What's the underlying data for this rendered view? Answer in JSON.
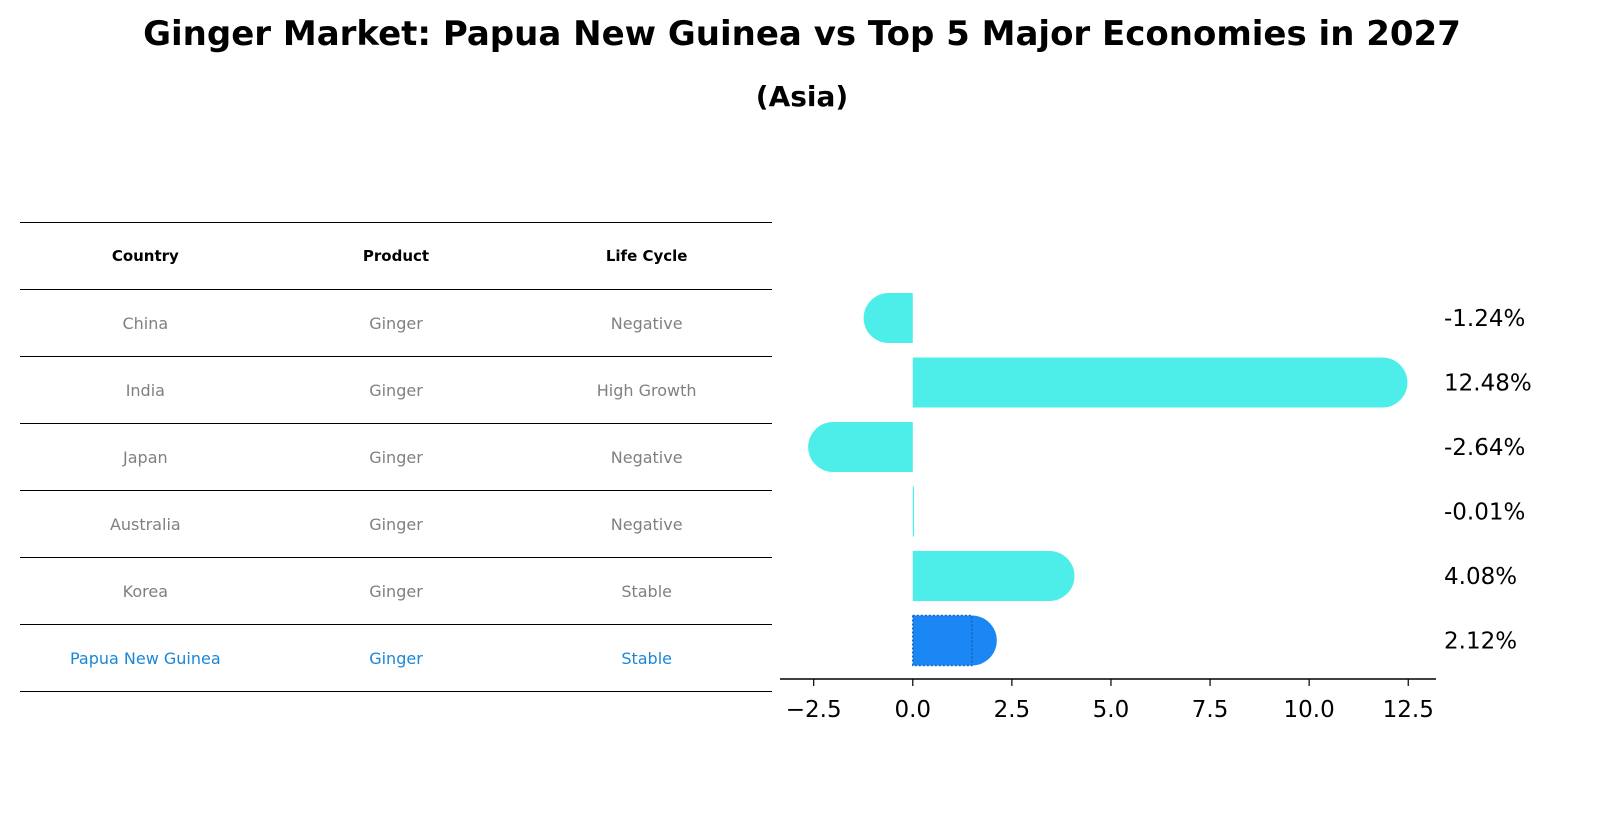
{
  "title": "Ginger Market: Papua New Guinea vs Top 5 Major Economies in 2027",
  "subtitle": "(Asia)",
  "table": {
    "headers": [
      "Country",
      "Product",
      "Life Cycle"
    ],
    "rows": [
      [
        "China",
        "Ginger",
        "Negative"
      ],
      [
        "India",
        "Ginger",
        "High Growth"
      ],
      [
        "Japan",
        "Ginger",
        "Negative"
      ],
      [
        "Australia",
        "Ginger",
        "Negative"
      ],
      [
        "Korea",
        "Ginger",
        "Stable"
      ],
      [
        "Papua New Guinea",
        "Ginger",
        "Stable"
      ]
    ]
  },
  "colors": {
    "bar": "#4deeea",
    "highlight": "#1a87f5",
    "highlight_text": "#1a87d6",
    "muted_text": "#808080"
  },
  "chart_data": {
    "type": "bar",
    "orientation": "horizontal",
    "categories": [
      "China",
      "India",
      "Japan",
      "Australia",
      "Korea",
      "Papua New Guinea"
    ],
    "values": [
      -1.24,
      12.48,
      -2.64,
      -0.01,
      4.08,
      2.12
    ],
    "value_labels": [
      "-1.24%",
      "12.48%",
      "-2.64%",
      "-0.01%",
      "4.08%",
      "2.12%"
    ],
    "highlight_index": 5,
    "xlim": [
      -3.35,
      13.15
    ],
    "xticks": [
      -2.5,
      0.0,
      2.5,
      5.0,
      7.5,
      10.0,
      12.5
    ],
    "xtick_labels": [
      "−2.5",
      "0.0",
      "2.5",
      "5.0",
      "7.5",
      "10.0",
      "12.5"
    ],
    "grid": false,
    "legend": "none"
  }
}
